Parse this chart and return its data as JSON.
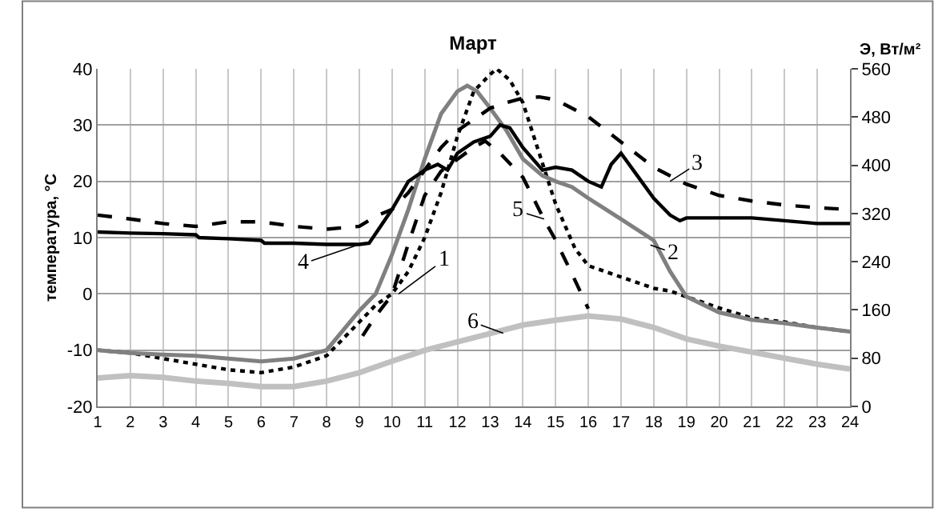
{
  "chart_data": {
    "type": "line",
    "title": "Март",
    "ylabel": "температура, °C",
    "y2label": "Э, Вт/м²",
    "xlim": [
      1,
      24
    ],
    "xticks": [
      1,
      2,
      3,
      4,
      5,
      6,
      7,
      8,
      9,
      10,
      11,
      12,
      13,
      14,
      15,
      16,
      17,
      18,
      19,
      20,
      21,
      22,
      23,
      24
    ],
    "ylim": [
      -20,
      40
    ],
    "yticks": [
      -20,
      -10,
      0,
      10,
      20,
      30,
      40
    ],
    "y2lim": [
      0,
      560
    ],
    "y2ticks": [
      0,
      80,
      160,
      240,
      320,
      400,
      480,
      560
    ],
    "grid": true,
    "series": [
      {
        "color": "#000000",
        "line_style": "dotted",
        "x": [
          1,
          2,
          3,
          4,
          5,
          6,
          7,
          8,
          9,
          9.5,
          10,
          10.5,
          11,
          11.5,
          12,
          12.5,
          13,
          13.2,
          13.6,
          14,
          14.5,
          15,
          15.6,
          16,
          17,
          18,
          18.5,
          19,
          20,
          21,
          22,
          23,
          24
        ],
        "values": [
          -10,
          -10.5,
          -11.5,
          -12.5,
          -13.5,
          -14,
          -13,
          -11,
          -5,
          -2,
          0,
          4,
          10,
          18,
          28,
          36,
          39,
          40,
          38,
          34,
          25,
          16,
          8,
          5,
          3,
          1,
          0.5,
          -0.5,
          -2.5,
          -4.3,
          -5,
          -6,
          -6.7
        ]
      },
      {
        "color": "#808080",
        "line_style": "solid",
        "x": [
          1,
          2,
          3,
          4,
          5,
          6,
          7,
          8,
          9,
          9.5,
          10,
          10.5,
          11,
          11.5,
          12,
          12.3,
          12.6,
          13,
          13.5,
          14,
          14.6,
          15,
          15.5,
          16,
          17,
          18,
          18.5,
          19,
          20,
          21,
          22,
          23,
          24
        ],
        "values": [
          -10,
          -10.5,
          -10.8,
          -11,
          -11.5,
          -12,
          -11.5,
          -10,
          -3,
          0,
          7,
          15,
          24,
          32,
          36,
          37,
          36,
          33,
          29,
          24,
          21,
          20,
          19,
          17,
          13.3,
          9.5,
          4,
          -0.5,
          -3.3,
          -4.6,
          -5.2,
          -6,
          -6.7
        ]
      },
      {
        "color": "#000000",
        "line_style": "dashed",
        "x": [
          1,
          2,
          3,
          4,
          5,
          6,
          7,
          8,
          9,
          9.5,
          10,
          10.5,
          11,
          11.5,
          12,
          12.5,
          13,
          13.5,
          14,
          14.5,
          15,
          16,
          17,
          18,
          19,
          20,
          21,
          22,
          23,
          24
        ],
        "values": [
          14,
          13.3,
          12.5,
          12,
          12.8,
          12.8,
          12,
          11.5,
          12,
          13.8,
          15,
          18,
          22,
          26,
          29,
          31,
          33,
          34,
          34.8,
          35,
          34.5,
          31.5,
          27,
          22.5,
          19.5,
          17.5,
          16.5,
          15.8,
          15.3,
          15
        ]
      },
      {
        "color": "#000000",
        "line_style": "solid",
        "x": [
          1,
          2,
          3,
          4,
          4.1,
          5,
          6,
          6.1,
          7,
          8,
          9,
          9.3,
          10,
          10.5,
          11,
          11.4,
          11.7,
          12,
          12.5,
          13,
          13.3,
          13.6,
          14,
          14.6,
          15,
          15.5,
          16,
          16.4,
          16.7,
          17,
          17.5,
          18,
          18.5,
          18.8,
          19,
          20,
          21,
          22,
          23,
          24
        ],
        "values": [
          11,
          10.8,
          10.7,
          10.5,
          10,
          9.8,
          9.5,
          9,
          9,
          8.8,
          8.8,
          9,
          15,
          20,
          22,
          23,
          22,
          25,
          27,
          28,
          30,
          29.5,
          26,
          22,
          22.5,
          22,
          20,
          19,
          23,
          25,
          21,
          17,
          14,
          13,
          13.5,
          13.5,
          13.5,
          13,
          12.5,
          12.5
        ]
      },
      {
        "color": "#000000",
        "line_style": "dashed",
        "axis": "y2",
        "x": [
          9.1,
          9.5,
          10,
          10.5,
          11,
          11.5,
          12,
          12.5,
          12.85,
          13.3,
          14,
          14.65,
          15,
          15.5,
          16
        ],
        "values": [
          117,
          150,
          185,
          270,
          350,
          390,
          410,
          430,
          440,
          420,
          380,
          310,
          276,
          220,
          162
        ]
      },
      {
        "color": "#c0c0c0",
        "line_style": "solid",
        "axis": "y2",
        "x": [
          1,
          2,
          3,
          4,
          5,
          6,
          7,
          8,
          9,
          10,
          11,
          12,
          13,
          14,
          15,
          16,
          17,
          18,
          19,
          20,
          21,
          22,
          23,
          24
        ],
        "values": [
          47,
          51,
          48,
          42,
          38,
          33,
          33,
          42,
          56,
          75,
          93,
          107,
          121,
          135,
          143,
          150,
          145,
          131,
          112,
          100,
          90,
          80,
          70,
          62
        ]
      }
    ],
    "annotations": [
      {
        "text": "1",
        "x": 10.2,
        "y": 0
      },
      {
        "text": "2",
        "x": 17.9,
        "y": 8.7
      },
      {
        "text": "3",
        "x": 18.5,
        "y": 20
      },
      {
        "text": "4",
        "x": 9.0,
        "y": 8.8
      },
      {
        "text": "5",
        "x": 14.65,
        "y": 13.3
      },
      {
        "text": "6",
        "x": 13.4,
        "y": -7
      }
    ]
  }
}
